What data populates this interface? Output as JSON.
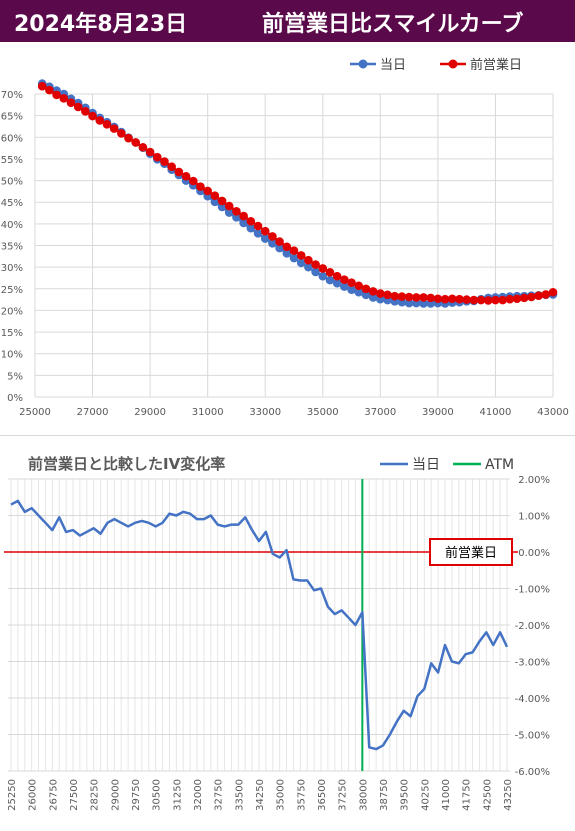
{
  "header": {
    "date": "2024年8月23日",
    "title": "前営業日比スマイルカーブ"
  },
  "colors": {
    "header_bg": "#5a0a4a",
    "current": "#4472c4",
    "previous": "#e00000",
    "atm": "#00b050",
    "zero_line": "#e00000"
  },
  "chart_data": [
    {
      "type": "line",
      "title": "",
      "ylim": [
        0,
        70
      ],
      "xlim": [
        25000,
        43000
      ],
      "y_ticks": [
        "0%",
        "5%",
        "10%",
        "15%",
        "20%",
        "25%",
        "30%",
        "35%",
        "40%",
        "45%",
        "50%",
        "55%",
        "60%",
        "65%",
        "70%"
      ],
      "x_ticks": [
        "25000",
        "27000",
        "29000",
        "31000",
        "33000",
        "35000",
        "37000",
        "39000",
        "41000",
        "43000"
      ],
      "grid": true,
      "legend": "top-right",
      "series": [
        {
          "name": "当日",
          "x": [
            25250,
            25500,
            25750,
            26000,
            26250,
            26500,
            26750,
            27000,
            27250,
            27500,
            27750,
            28000,
            28250,
            28500,
            28750,
            29000,
            29250,
            29500,
            29750,
            30000,
            30250,
            30500,
            30750,
            31000,
            31250,
            31500,
            31750,
            32000,
            32250,
            32500,
            32750,
            33000,
            33250,
            33500,
            33750,
            34000,
            34250,
            34500,
            34750,
            35000,
            35250,
            35500,
            35750,
            36000,
            36250,
            36500,
            36750,
            37000,
            37250,
            37500,
            37750,
            38000,
            38250,
            38500,
            38750,
            39000,
            39250,
            39500,
            39750,
            40000,
            40250,
            40500,
            40750,
            41000,
            41250,
            41500,
            41750,
            42000,
            42250,
            42500,
            42750,
            43000
          ],
          "values": [
            72.4,
            71.7,
            70.8,
            70.0,
            68.9,
            67.9,
            66.8,
            65.6,
            64.5,
            63.5,
            62.4,
            61.2,
            59.9,
            58.8,
            57.6,
            56.2,
            54.9,
            53.9,
            52.5,
            51.3,
            50.0,
            48.9,
            47.6,
            46.4,
            45.1,
            43.9,
            42.6,
            41.5,
            40.2,
            39.0,
            37.8,
            36.6,
            35.5,
            34.4,
            33.2,
            32.1,
            31.0,
            30.0,
            28.9,
            27.9,
            27.0,
            26.3,
            25.5,
            24.8,
            24.2,
            23.6,
            23.0,
            22.6,
            22.4,
            22.1,
            21.9,
            21.7,
            21.7,
            21.6,
            21.6,
            21.7,
            21.6,
            21.8,
            21.9,
            22.1,
            22.2,
            22.6,
            22.9,
            23.0,
            23.1,
            23.2,
            23.3,
            23.3,
            23.4,
            23.5,
            23.6,
            23.7
          ]
        },
        {
          "name": "前営業日",
          "x": [
            25250,
            25500,
            25750,
            26000,
            26250,
            26500,
            26750,
            27000,
            27250,
            27500,
            27750,
            28000,
            28250,
            28500,
            28750,
            29000,
            29250,
            29500,
            29750,
            30000,
            30250,
            30500,
            30750,
            31000,
            31250,
            31500,
            31750,
            32000,
            32250,
            32500,
            32750,
            33000,
            33250,
            33500,
            33750,
            34000,
            34250,
            34500,
            34750,
            35000,
            35250,
            35500,
            35750,
            36000,
            36250,
            36500,
            36750,
            37000,
            37250,
            37500,
            37750,
            38000,
            38250,
            38500,
            38750,
            39000,
            39250,
            39500,
            39750,
            40000,
            40250,
            40500,
            40750,
            41000,
            41250,
            41500,
            41750,
            42000,
            42250,
            42500,
            42750,
            43000
          ],
          "values": [
            71.8,
            70.9,
            69.8,
            69.0,
            68.0,
            67.0,
            66.0,
            64.9,
            63.9,
            63.0,
            62.0,
            60.9,
            59.8,
            58.8,
            57.7,
            56.6,
            55.4,
            54.4,
            53.2,
            52.0,
            51.0,
            49.9,
            48.6,
            47.6,
            46.5,
            45.3,
            44.1,
            42.9,
            41.8,
            40.6,
            39.5,
            38.3,
            37.1,
            35.9,
            34.7,
            33.8,
            32.7,
            31.6,
            30.6,
            29.7,
            28.8,
            27.9,
            27.1,
            26.4,
            25.7,
            25.0,
            24.4,
            23.9,
            23.6,
            23.3,
            23.2,
            23.1,
            23.0,
            23.0,
            22.9,
            22.7,
            22.6,
            22.7,
            22.6,
            22.5,
            22.4,
            22.4,
            22.3,
            22.4,
            22.4,
            22.6,
            22.7,
            22.9,
            23.1,
            23.4,
            23.7,
            24.2
          ]
        }
      ]
    },
    {
      "type": "line",
      "title": "前営業日と比較したIV変化率",
      "ylim": [
        -6,
        2
      ],
      "y_ticks": [
        "2.00%",
        "1.00%",
        "0.00%",
        "-1.00%",
        "-2.00%",
        "-3.00%",
        "-4.00%",
        "-5.00%",
        "-6.00%"
      ],
      "x_ticks": [
        "25250",
        "26000",
        "26750",
        "27500",
        "28250",
        "29000",
        "29750",
        "30500",
        "31250",
        "32000",
        "32750",
        "33500",
        "34250",
        "35000",
        "35750",
        "36500",
        "37250",
        "38000",
        "38750",
        "39500",
        "40250",
        "41000",
        "41750",
        "42500",
        "43250"
      ],
      "atm_x": 38000,
      "legend": "top-right",
      "zero_line_label": "前営業日",
      "series": [
        {
          "name": "当日",
          "x": [
            25250,
            25500,
            25750,
            26000,
            26250,
            26500,
            26750,
            27000,
            27250,
            27500,
            27750,
            28000,
            28250,
            28500,
            28750,
            29000,
            29250,
            29500,
            29750,
            30000,
            30250,
            30500,
            30750,
            31000,
            31250,
            31500,
            31750,
            32000,
            32250,
            32500,
            32750,
            33000,
            33250,
            33500,
            33750,
            34000,
            34250,
            34500,
            34750,
            35000,
            35250,
            35500,
            35750,
            36000,
            36250,
            36500,
            36750,
            37000,
            37250,
            37500,
            37750,
            38000,
            38250,
            38500,
            38750,
            39000,
            39250,
            39500,
            39750,
            40000,
            40250,
            40500,
            40750,
            41000,
            41250,
            41500,
            41750,
            42000,
            42250,
            42500,
            42750,
            43000,
            43250
          ],
          "values": [
            1.3,
            1.4,
            1.1,
            1.2,
            1.0,
            0.8,
            0.6,
            0.95,
            0.55,
            0.6,
            0.45,
            0.55,
            0.65,
            0.5,
            0.8,
            0.9,
            0.8,
            0.7,
            0.8,
            0.85,
            0.8,
            0.7,
            0.8,
            1.05,
            1.0,
            1.1,
            1.05,
            0.9,
            0.9,
            1.0,
            0.75,
            0.7,
            0.75,
            0.75,
            0.95,
            0.6,
            0.3,
            0.55,
            -0.05,
            -0.15,
            0.05,
            -0.75,
            -0.78,
            -0.78,
            -1.05,
            -1.0,
            -1.5,
            -1.7,
            -1.6,
            -1.8,
            -2.0,
            -1.65,
            -5.35,
            -5.4,
            -5.3,
            -5.0,
            -4.65,
            -4.35,
            -4.5,
            -3.95,
            -3.75,
            -3.05,
            -3.3,
            -2.55,
            -3.0,
            -3.05,
            -2.8,
            -2.75,
            -2.45,
            -2.2,
            -2.55,
            -2.2,
            -2.6
          ]
        }
      ]
    }
  ]
}
